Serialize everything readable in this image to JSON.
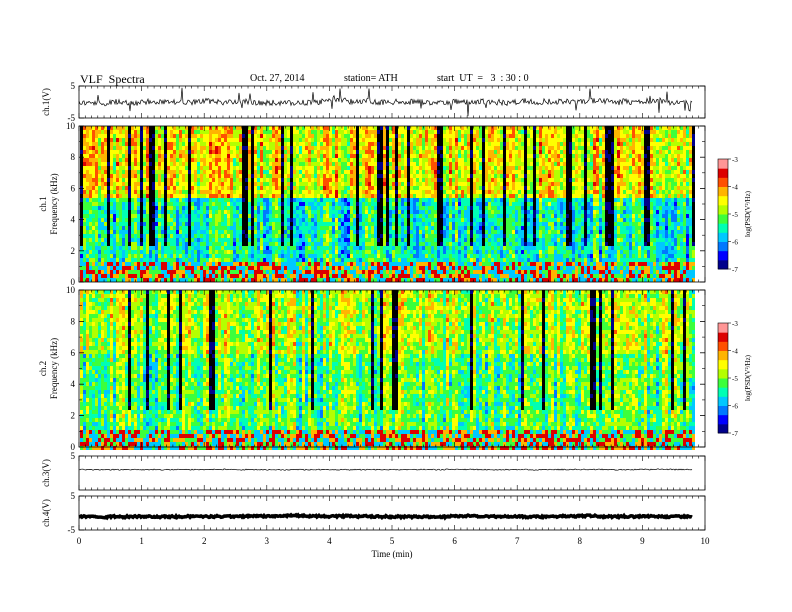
{
  "header": {
    "title": "VLF  Spectra",
    "date": "Oct. 27, 2014",
    "station": "station= ATH",
    "start": "start  UT  =   3  : 30 : 0"
  },
  "chart_data": {
    "type": "heatmap",
    "xlabel": "Time  (min)",
    "xlim": [
      0,
      10
    ],
    "xticks": [
      "0",
      "1",
      "2",
      "3",
      "4",
      "5",
      "6",
      "7",
      "8",
      "9",
      "10"
    ],
    "data_end_min": 9.8,
    "panels": [
      {
        "id": "ch1-wave",
        "kind": "line",
        "ylabel": "ch.1(V)",
        "ylim": [
          -5,
          5
        ],
        "yticks": [
          "5",
          "-5"
        ],
        "offset": 0,
        "amplitude": 0.9,
        "spikes": true
      },
      {
        "id": "ch1-spec",
        "kind": "spectrogram",
        "ylabel_top": "ch.1",
        "ylabel": "Frequency  (kHz)",
        "ylim": [
          0,
          10
        ],
        "yticks": [
          "0",
          "2",
          "4",
          "6",
          "8",
          "10"
        ],
        "colorbar": {
          "label": "log(PSD(V²/Hz)",
          "range": [
            -7,
            -3
          ],
          "ticks": [
            "-3",
            "-4",
            "-5",
            "-6",
            "-7"
          ]
        }
      },
      {
        "id": "ch2-spec",
        "kind": "spectrogram",
        "ylabel_top": "ch.2",
        "ylabel": "Frequency  (kHz)",
        "ylim": [
          0,
          10
        ],
        "yticks": [
          "0",
          "2",
          "4",
          "6",
          "8",
          "10"
        ],
        "colorbar": {
          "label": "log(PSD(V²/Hz)",
          "range": [
            -7,
            -3
          ],
          "ticks": [
            "-3",
            "-4",
            "-5",
            "-6",
            "-7"
          ]
        }
      },
      {
        "id": "ch3-wave",
        "kind": "line",
        "ylabel": "ch.3(V)",
        "ylim": [
          -5,
          5
        ],
        "yticks": [
          "5"
        ],
        "offset": 1.0,
        "amplitude": 0.15,
        "spikes": false
      },
      {
        "id": "ch4-wave",
        "kind": "line",
        "ylabel": "ch.4(V)",
        "ylim": [
          -5,
          5
        ],
        "yticks": [
          "5",
          "-5"
        ],
        "offset": -1.0,
        "amplitude": 0.25,
        "spikes": false,
        "thick": true
      }
    ],
    "colormap": [
      "#00008c",
      "#0000ff",
      "#0078ff",
      "#00c8ff",
      "#00ffb4",
      "#3cff3c",
      "#b4ff00",
      "#ffff00",
      "#ffb400",
      "#ff5000",
      "#dc0000",
      "#ff9696"
    ]
  }
}
